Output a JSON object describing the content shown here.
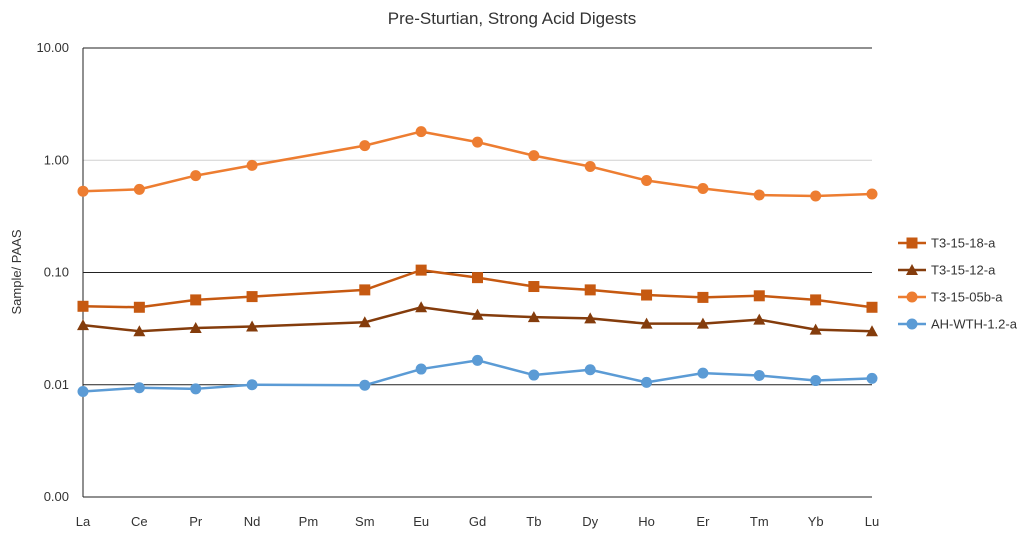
{
  "chart_data": {
    "type": "line",
    "title": "Pre-Sturtian, Strong Acid Digests",
    "xlabel": "",
    "ylabel": "Sample/ PAAS",
    "y_scale": "log",
    "ylim": [
      0.001,
      10
    ],
    "y_ticks": [
      10,
      1,
      0.1,
      0.01,
      0.001
    ],
    "y_tick_labels": [
      "10.00",
      "1.00",
      "0.10",
      "0.01",
      "0.00"
    ],
    "grid": "horizontal gridlines at major ticks",
    "legend_position": "right",
    "categories": [
      "La",
      "Ce",
      "Pr",
      "Nd",
      "Pm",
      "Sm",
      "Eu",
      "Gd",
      "Tb",
      "Dy",
      "Ho",
      "Er",
      "Tm",
      "Yb",
      "Lu"
    ],
    "series": [
      {
        "name": "T3-15-18-a",
        "color": "#c65911",
        "marker": "square",
        "values": [
          0.05,
          0.049,
          0.057,
          0.061,
          null,
          0.07,
          0.105,
          0.09,
          0.075,
          0.07,
          0.063,
          0.06,
          0.062,
          0.057,
          0.049
        ]
      },
      {
        "name": "T3-15-12-a",
        "color": "#843c0c",
        "marker": "triangle",
        "values": [
          0.034,
          0.03,
          0.032,
          0.033,
          null,
          0.036,
          0.049,
          0.042,
          0.04,
          0.039,
          0.035,
          0.035,
          0.038,
          0.031,
          0.03
        ]
      },
      {
        "name": "T3-15-05b-a",
        "color": "#ed7d31",
        "marker": "circle",
        "values": [
          0.53,
          0.55,
          0.73,
          0.9,
          null,
          1.35,
          1.8,
          1.45,
          1.1,
          0.88,
          0.66,
          0.56,
          0.49,
          0.48,
          0.5
        ]
      },
      {
        "name": "AH-WTH-1.2-a",
        "color": "#5b9bd5",
        "marker": "circle",
        "values": [
          0.0087,
          0.0094,
          0.0092,
          0.01,
          null,
          0.0099,
          0.0138,
          0.0165,
          0.0122,
          0.0136,
          0.0105,
          0.0127,
          0.0121,
          0.0109,
          0.0114
        ]
      }
    ]
  }
}
